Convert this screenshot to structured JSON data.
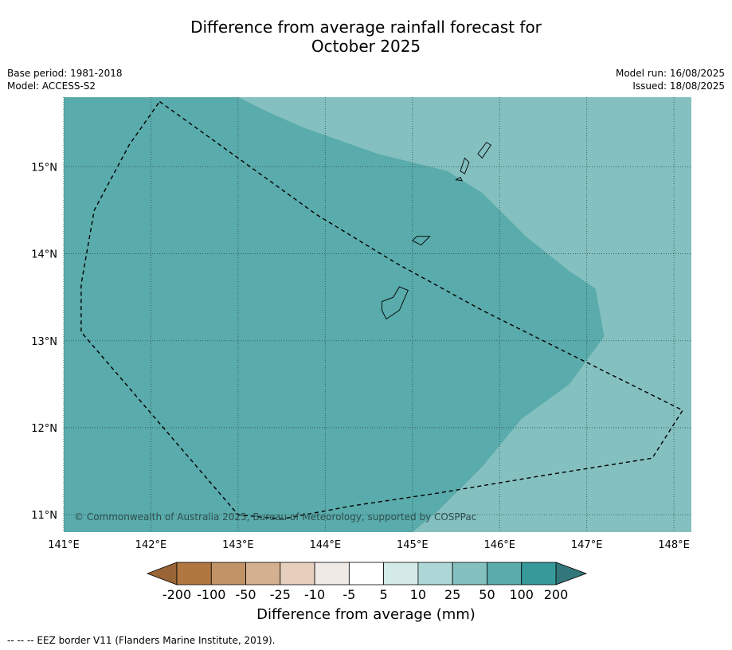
{
  "title": {
    "line1": "Difference from average rainfall forecast for",
    "line2": "October 2025"
  },
  "meta": {
    "base_period": "Base period: 1981-2018",
    "model": "Model: ACCESS-S2",
    "model_run": "Model run: 16/08/2025",
    "issued": "Issued: 18/08/2025"
  },
  "map": {
    "lon_ticks": [
      "141°E",
      "142°E",
      "143°E",
      "144°E",
      "145°E",
      "146°E",
      "147°E",
      "148°E"
    ],
    "lat_ticks": [
      "15°N",
      "14°N",
      "13°N",
      "12°N",
      "11°N"
    ],
    "copyright": "© Commonwealth of Australia 2025, Bureau of Meteorology, supported by COSPPac",
    "colors": {
      "band_50_100": "#5aabab",
      "band_25_50": "#84c0bf"
    },
    "region_50_100_outline_lonlat": [
      [
        141.0,
        15.8
      ],
      [
        143.0,
        15.8
      ],
      [
        143.3,
        15.65
      ],
      [
        143.75,
        15.45
      ],
      [
        144.6,
        15.15
      ],
      [
        145.4,
        14.95
      ],
      [
        145.8,
        14.7
      ],
      [
        146.3,
        14.2
      ],
      [
        146.8,
        13.8
      ],
      [
        147.1,
        13.6
      ],
      [
        147.2,
        13.05
      ],
      [
        146.8,
        12.5
      ],
      [
        146.25,
        12.1
      ],
      [
        145.8,
        11.55
      ],
      [
        145.3,
        11.05
      ],
      [
        145.0,
        10.8
      ],
      [
        141.0,
        10.8
      ]
    ],
    "eez_border_lonlat": [
      [
        142.1,
        15.75
      ],
      [
        143.0,
        15.1
      ],
      [
        143.9,
        14.45
      ],
      [
        144.8,
        13.9
      ],
      [
        145.8,
        13.35
      ],
      [
        147.0,
        12.75
      ],
      [
        148.1,
        12.2
      ],
      [
        147.75,
        11.65
      ],
      [
        146.5,
        11.45
      ],
      [
        145.3,
        11.25
      ],
      [
        144.3,
        11.1
      ],
      [
        143.5,
        10.95
      ],
      [
        143.0,
        11.0
      ],
      [
        141.2,
        13.1
      ],
      [
        141.2,
        13.65
      ],
      [
        141.35,
        14.5
      ],
      [
        141.75,
        15.25
      ],
      [
        142.1,
        15.75
      ]
    ],
    "islands_lonlat": [
      [
        [
          144.85,
          13.62
        ],
        [
          144.95,
          13.58
        ],
        [
          144.85,
          13.35
        ],
        [
          144.7,
          13.25
        ],
        [
          144.65,
          13.35
        ],
        [
          144.65,
          13.45
        ],
        [
          144.78,
          13.5
        ]
      ],
      [
        [
          145.0,
          14.15
        ],
        [
          145.05,
          14.2
        ],
        [
          145.2,
          14.2
        ],
        [
          145.1,
          14.1
        ]
      ],
      [
        [
          145.55,
          14.95
        ],
        [
          145.6,
          15.1
        ],
        [
          145.65,
          15.05
        ],
        [
          145.6,
          14.92
        ]
      ],
      [
        [
          145.75,
          15.15
        ],
        [
          145.85,
          15.28
        ],
        [
          145.9,
          15.25
        ],
        [
          145.8,
          15.1
        ]
      ],
      [
        [
          145.5,
          14.85
        ],
        [
          145.55,
          14.88
        ],
        [
          145.57,
          14.84
        ]
      ]
    ]
  },
  "colorbar": {
    "title": "Difference from average (mm)",
    "labels": [
      "-200",
      "-100",
      "-50",
      "-25",
      "-10",
      "-5",
      "5",
      "10",
      "25",
      "50",
      "100",
      "200"
    ],
    "colors": [
      "#b07840",
      "#c29267",
      "#d4b090",
      "#e6cfbd",
      "#efeae6",
      "#ffffff",
      "#d3eae8",
      "#add6d6",
      "#84c0bf",
      "#5aabab",
      "#36999a"
    ],
    "under_color": "#9a6536",
    "over_color": "#34777a"
  },
  "footnote": "--  --  -- EEZ border V11 (Flanders Marine Institute, 2019)."
}
